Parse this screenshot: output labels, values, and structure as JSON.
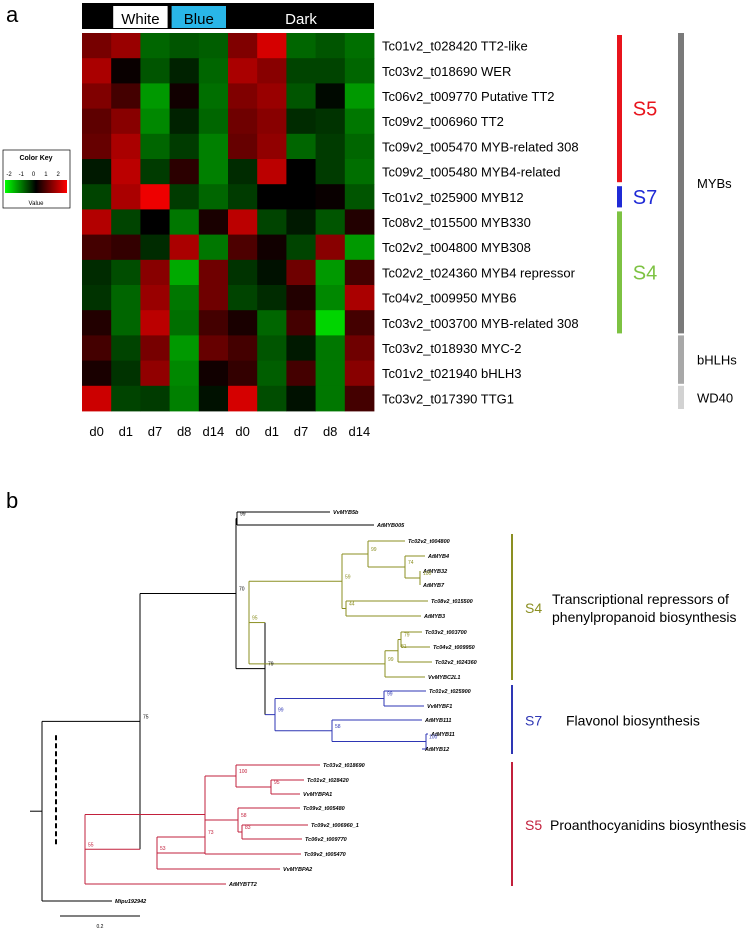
{
  "panel_a": {
    "label": "a",
    "color_key": {
      "title": "Color Key",
      "ticks": [
        "-2",
        "-1",
        "0",
        "1",
        "2"
      ],
      "value_label": "Value"
    },
    "conditions": [
      {
        "label": "White",
        "fill": "#ffffff",
        "span": [
          1,
          2
        ]
      },
      {
        "label": "Blue",
        "fill": "#29b6e8",
        "span": [
          3,
          4
        ]
      },
      {
        "label": "Dark",
        "fill": "#000000",
        "span": [
          5,
          9
        ]
      }
    ],
    "columns": [
      "d0",
      "d1",
      "d7",
      "d8",
      "d14",
      "d0",
      "d1",
      "d7",
      "d8",
      "d14"
    ],
    "rows": [
      "Tc01v2_t028420 TT2-like",
      "Tc03v2_t018690 WER",
      "Tc06v2_t009770 Putative TT2",
      "Tc09v2_t006960 TT2",
      "Tc09v2_t005470 MYB-related 308",
      "Tc09v2_t005480 MYB4-related",
      "Tc01v2_t025900 MYB12",
      "Tc08v2_t015500 MYB330",
      "Tc02v2_t004800 MYB308",
      "Tc02v2_t024360 MYB4 repressor",
      "Tc04v2_t009950 MYB6",
      "Tc03v2_t003700 MYB-related 308",
      "Tc03v2_t018930 MYC-2",
      "Tc01v2_t021940 bHLH3",
      "Tc03v2_t017390 TTG1"
    ],
    "groups": [
      {
        "label": "S5",
        "color": "#e8141c",
        "rows": [
          0,
          5
        ]
      },
      {
        "label": "S7",
        "color": "#1f2ad6",
        "rows": [
          6,
          6
        ]
      },
      {
        "label": "S4",
        "color": "#7dc242",
        "rows": [
          7,
          11
        ]
      }
    ],
    "families": [
      {
        "label": "MYBs",
        "color": "#7a7a7a",
        "rows": [
          0,
          11
        ]
      },
      {
        "label": "bHLHs",
        "color": "#a8a8a8",
        "rows": [
          12,
          13
        ]
      },
      {
        "label": "WD40",
        "color": "#d2d2d2",
        "rows": [
          14,
          14
        ]
      }
    ],
    "values": [
      [
        1.4,
        1.8,
        -1.2,
        -1.0,
        -1.1,
        1.5,
        2.5,
        -1.2,
        -1.0,
        -1.3
      ],
      [
        2.0,
        0.1,
        -1.0,
        -0.4,
        -1.2,
        2.0,
        1.6,
        -0.8,
        -0.8,
        -1.2
      ],
      [
        1.5,
        0.8,
        -1.8,
        0.2,
        -1.3,
        1.5,
        1.8,
        -1.0,
        -0.1,
        -1.8
      ],
      [
        1.1,
        1.6,
        -1.6,
        -0.4,
        -1.2,
        1.3,
        1.6,
        -0.5,
        -0.6,
        -1.4
      ],
      [
        1.2,
        2.0,
        -1.2,
        -0.7,
        -1.5,
        1.2,
        1.7,
        -1.2,
        -0.7,
        -1.2
      ],
      [
        -0.3,
        2.2,
        -0.7,
        0.5,
        -1.5,
        -0.5,
        2.2,
        0.0,
        -0.7,
        -1.3
      ],
      [
        -0.8,
        2.0,
        2.8,
        -0.7,
        -1.2,
        -0.7,
        0.0,
        0.0,
        0.1,
        -1.0
      ],
      [
        2.1,
        -0.8,
        0.0,
        -1.4,
        0.3,
        2.2,
        -0.8,
        -0.3,
        -1.0,
        0.4
      ],
      [
        0.8,
        0.6,
        -0.5,
        2.0,
        -1.4,
        0.9,
        0.2,
        -0.8,
        1.6,
        -1.8
      ],
      [
        -0.5,
        -0.9,
        1.6,
        -2.0,
        1.3,
        -0.6,
        -0.2,
        1.3,
        -1.8,
        0.8
      ],
      [
        -0.6,
        -1.2,
        1.8,
        -1.4,
        1.3,
        -0.8,
        -0.5,
        0.4,
        -1.6,
        2.0
      ],
      [
        0.4,
        -1.2,
        2.2,
        -1.3,
        0.8,
        0.3,
        -1.2,
        0.8,
        -2.5,
        0.8
      ],
      [
        0.8,
        -0.8,
        1.4,
        -1.8,
        1.2,
        0.8,
        -1.0,
        -0.3,
        -1.4,
        1.3
      ],
      [
        0.3,
        -0.6,
        1.7,
        -1.6,
        0.2,
        0.6,
        -1.1,
        0.8,
        -1.4,
        1.6
      ],
      [
        2.4,
        -0.8,
        -0.7,
        -1.5,
        -0.2,
        2.5,
        -0.9,
        -0.2,
        -1.4,
        0.8
      ]
    ]
  },
  "panel_b": {
    "label": "b",
    "tree_color": "#000000",
    "clades": [
      {
        "id": "S4",
        "color": "#8b8f22",
        "label": "S4",
        "description": [
          "Transcriptional repressors of",
          "phenylpropanoid biosynthesis"
        ]
      },
      {
        "id": "S7",
        "color": "#2e36b4",
        "label": "S7",
        "description": [
          "Flavonol biosynthesis"
        ]
      },
      {
        "id": "S5",
        "color": "#c2203c",
        "label": "S5",
        "description": [
          "Proanthocyanidins biosynthesis"
        ]
      }
    ],
    "leaves": [
      "VvMYB5b",
      "AtMYB005",
      "Tc02v2_t004800",
      "AtMYB4",
      "AtMYB32",
      "AtMYB7",
      "Tc08v2_t015500",
      "AtMYB3",
      "Tc03v2_t003700",
      "Tc04v2_t009950",
      "Tc02v2_t024360",
      "VvMYBC2L1",
      "Tc01v2_t025900",
      "VvMYBF1",
      "AtMYB111",
      "AtMYB11",
      "AtMYB12",
      "Tc03v2_t018690",
      "Tc01v2_t028420",
      "VvMYBPA1",
      "Tc09v2_t005480",
      "Tc09v2_t006960_1",
      "Tc06v2_t009770",
      "Tc09v2_t005470",
      "VvMYBPA2",
      "AtMYBTT2",
      "Mipu192942"
    ],
    "bootstrap": [
      "99",
      "70",
      "75",
      "79",
      "99",
      "74",
      "100",
      "59",
      "95",
      "44",
      "99",
      "79",
      "81",
      "99",
      "99",
      "58",
      "100",
      "55",
      "100",
      "95",
      "73",
      "83",
      "53",
      "58"
    ],
    "scale_label": "0.2"
  }
}
